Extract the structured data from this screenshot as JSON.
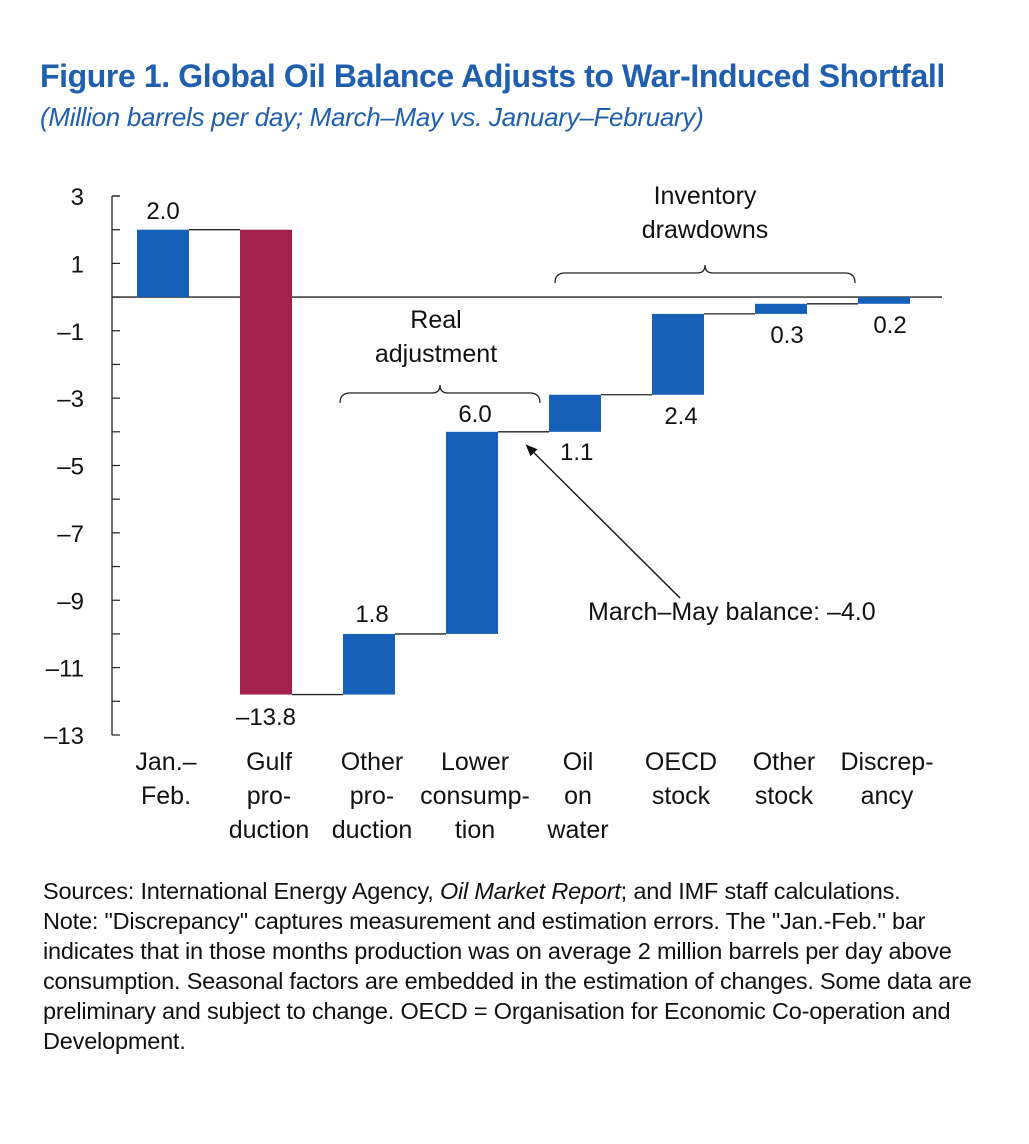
{
  "figure": {
    "title": "Figure 1. Global Oil Balance Adjusts to War-Induced Shortfall",
    "subtitle": "(Million barrels per day; March–May vs. January–February)"
  },
  "chart_data": {
    "type": "bar",
    "subtype": "waterfall",
    "title": "Figure 1. Global Oil Balance Adjusts to War-Induced Shortfall",
    "subtitle": "(Million barrels per day; March–May vs. January–February)",
    "ylim": [
      -13,
      3
    ],
    "yticks": [
      3,
      1,
      -1,
      -3,
      -5,
      -7,
      -9,
      -11,
      -13
    ],
    "ytick_labels": [
      "3",
      "1",
      "–1",
      "–3",
      "–5",
      "–7",
      "–9",
      "–11",
      "–13"
    ],
    "bars": [
      {
        "category": "Jan.–Feb.",
        "label_lines": [
          "Jan.–",
          "Feb."
        ],
        "start": 0,
        "end": 2.0,
        "value_label": "2.0",
        "color": "#1760b8"
      },
      {
        "category": "Gulf production",
        "label_lines": [
          "Gulf",
          "pro-",
          "duction"
        ],
        "start": 2.0,
        "end": -11.8,
        "value_label": "–13.8",
        "color": "#a5214d"
      },
      {
        "category": "Other production",
        "label_lines": [
          "Other",
          "pro-",
          "duction"
        ],
        "start": -11.8,
        "end": -10.0,
        "value_label": "1.8",
        "color": "#1760b8"
      },
      {
        "category": "Lower consumption",
        "label_lines": [
          "Lower",
          "consump-",
          "tion"
        ],
        "start": -10.0,
        "end": -4.0,
        "value_label": "6.0",
        "color": "#1760b8"
      },
      {
        "category": "Oil on water",
        "label_lines": [
          "Oil",
          "on",
          "water"
        ],
        "start": -4.0,
        "end": -2.9,
        "value_label": "1.1",
        "color": "#1760b8"
      },
      {
        "category": "OECD stock",
        "label_lines": [
          "OECD",
          "stock"
        ],
        "start": -2.9,
        "end": -0.5,
        "value_label": "2.4",
        "color": "#1760b8"
      },
      {
        "category": "Other stock",
        "label_lines": [
          "Other",
          "stock"
        ],
        "start": -0.5,
        "end": -0.2,
        "value_label": "0.3",
        "color": "#1760b8"
      },
      {
        "category": "Discrepancy",
        "label_lines": [
          "Discrep-",
          "ancy"
        ],
        "start": -0.2,
        "end": 0.0,
        "value_label": "0.2",
        "color": "#1760b8"
      }
    ],
    "annotations": {
      "real_adjustment": [
        "Real",
        "adjustment"
      ],
      "inventory_drawdowns": [
        "Inventory",
        "drawdowns"
      ],
      "balance_label": "March–May balance: –4.0",
      "balance_value": -4.0
    }
  },
  "notes": {
    "sources_prefix": "Sources: International Energy Agency, ",
    "sources_italic": "Oil Market Report",
    "sources_suffix": "; and IMF staff calculations.",
    "note": "Note: \"Discrepancy\" captures measurement and estimation errors. The \"Jan.-Feb.\" bar indicates that in those months production was on average 2 million barrels per day above consumption. Seasonal factors are embedded in the estimation of changes. Some data are preliminary and subject to change. OECD = Organisation for Economic Co-operation and Development."
  }
}
